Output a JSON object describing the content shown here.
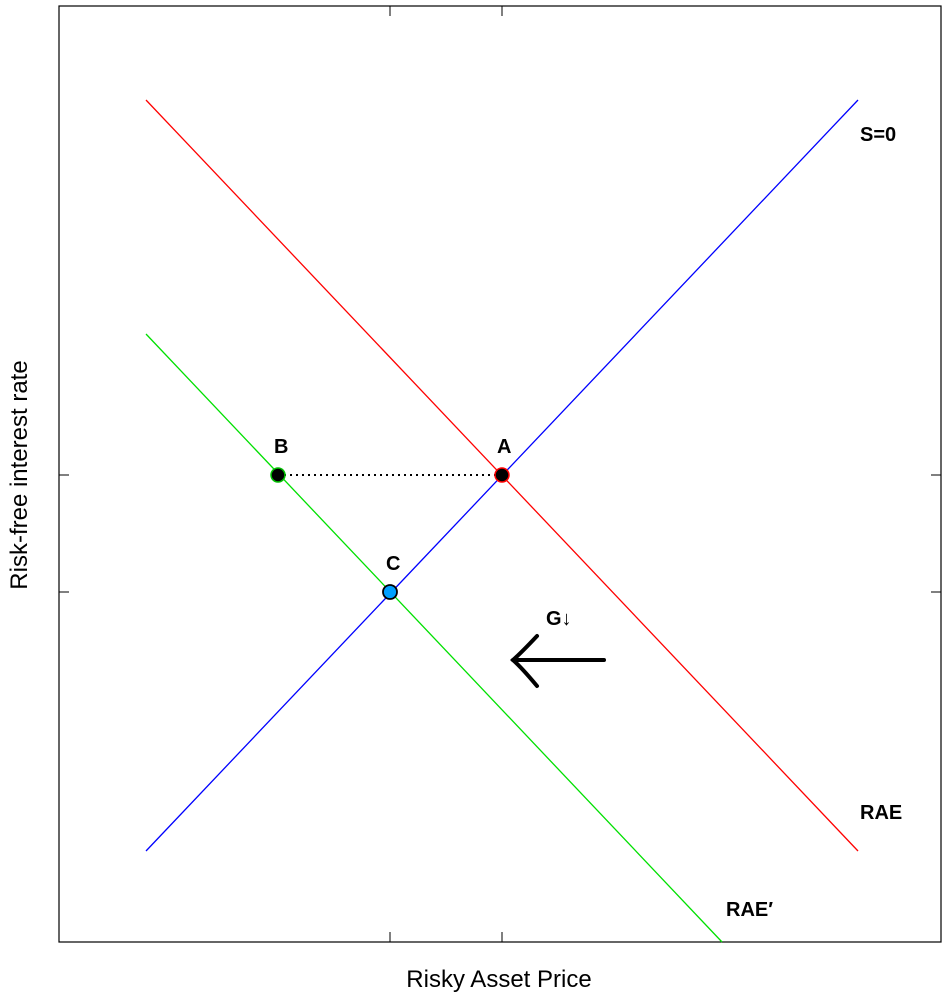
{
  "axes": {
    "xlabel": "Risky Asset Price",
    "ylabel": "Risk-free interest rate"
  },
  "curves": [
    {
      "id": "s0",
      "label": "S=0",
      "color": "#0000ff"
    },
    {
      "id": "rae",
      "label": "RAE",
      "color": "#ff0000"
    },
    {
      "id": "rae_prime",
      "label": "RAE′",
      "color": "#00e000"
    }
  ],
  "points": [
    {
      "id": "A",
      "label": "A"
    },
    {
      "id": "B",
      "label": "B"
    },
    {
      "id": "C",
      "label": "C"
    }
  ],
  "shift": {
    "label": "G↓"
  }
}
